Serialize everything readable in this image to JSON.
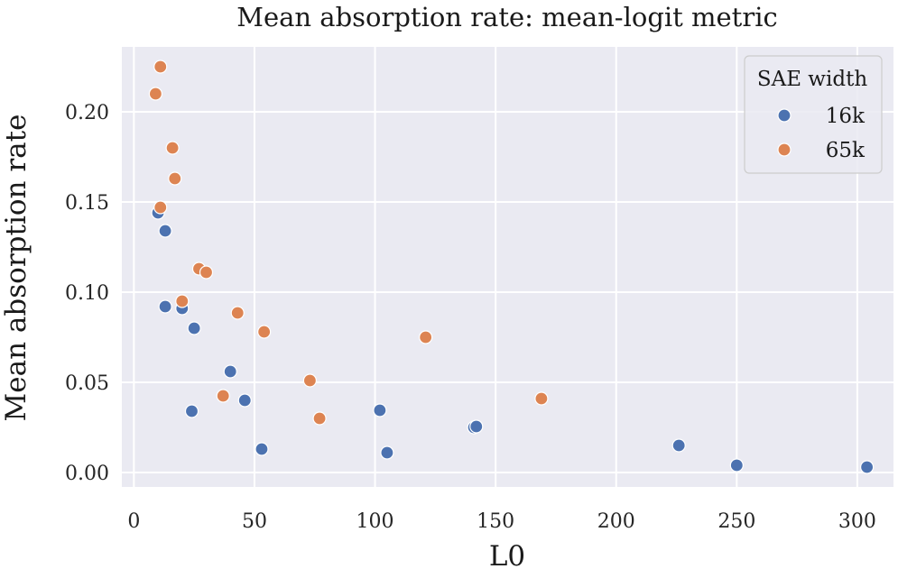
{
  "chart_data": {
    "type": "scatter",
    "title": "Mean absorption rate: mean-logit metric",
    "xlabel": "L0",
    "ylabel": "Mean absorption rate",
    "xlim": [
      -5,
      315
    ],
    "ylim": [
      -0.008,
      0.236
    ],
    "x_ticks": [
      0,
      50,
      100,
      150,
      200,
      250,
      300
    ],
    "x_tick_labels": [
      "0",
      "50",
      "100",
      "150",
      "200",
      "250",
      "300"
    ],
    "y_ticks": [
      0.0,
      0.05,
      0.1,
      0.15,
      0.2
    ],
    "y_tick_labels": [
      "0.00",
      "0.05",
      "0.10",
      "0.15",
      "0.20"
    ],
    "grid": true,
    "background": "#eaeaf2",
    "legend": {
      "title": "SAE width",
      "position": "top-right"
    },
    "series": [
      {
        "name": "16k",
        "color": "#4c72b0",
        "x": [
          10,
          13,
          13,
          20,
          25,
          24,
          40,
          46,
          53,
          102,
          105,
          141,
          142,
          226,
          250,
          304
        ],
        "y": [
          0.144,
          0.134,
          0.092,
          0.091,
          0.08,
          0.034,
          0.056,
          0.04,
          0.013,
          0.0345,
          0.011,
          0.025,
          0.0255,
          0.015,
          0.004,
          0.003
        ]
      },
      {
        "name": "65k",
        "color": "#dd8452",
        "x": [
          9,
          11,
          16,
          17,
          11,
          27,
          30,
          20,
          43,
          54,
          37,
          73,
          77,
          121,
          169
        ],
        "y": [
          0.21,
          0.225,
          0.18,
          0.163,
          0.147,
          0.113,
          0.111,
          0.095,
          0.0885,
          0.078,
          0.0425,
          0.051,
          0.03,
          0.075,
          0.041
        ]
      }
    ]
  }
}
